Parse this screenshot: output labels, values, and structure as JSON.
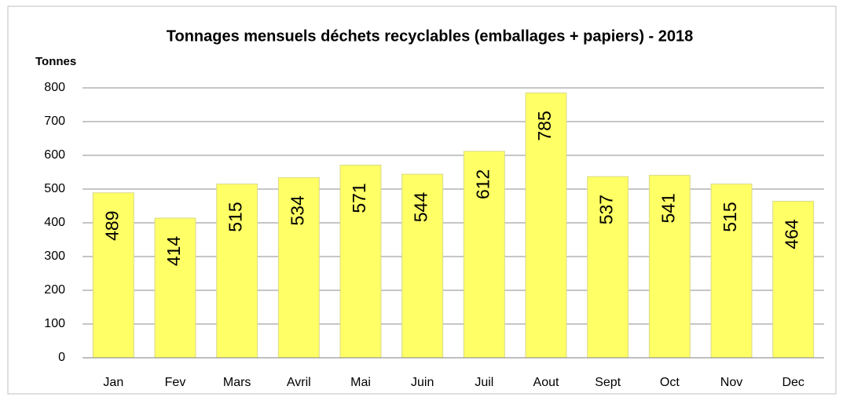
{
  "chart_data": {
    "type": "bar",
    "title": "Tonnages mensuels déchets recyclables (emballages + papiers) - 2018",
    "y_label": "Tonnes",
    "categories": [
      "Jan",
      "Fev",
      "Mars",
      "Avril",
      "Mai",
      "Juin",
      "Juil",
      "Aout",
      "Sept",
      "Oct",
      "Nov",
      "Dec"
    ],
    "values": [
      489,
      414,
      515,
      534,
      571,
      544,
      612,
      785,
      537,
      541,
      515,
      464
    ],
    "color": "#ffff66",
    "ylim": [
      0,
      800
    ],
    "yticks": [
      0,
      100,
      200,
      300,
      400,
      500,
      600,
      700,
      800
    ],
    "grid": true
  }
}
